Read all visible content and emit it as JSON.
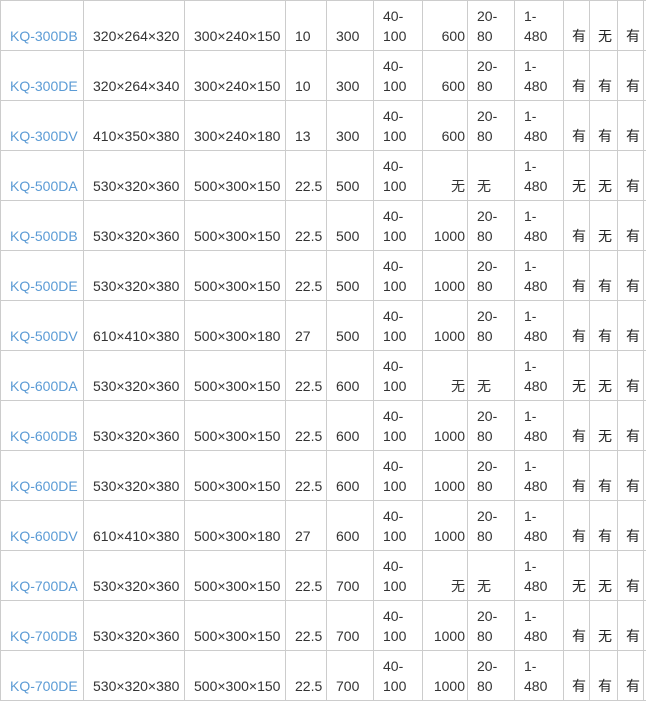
{
  "colors": {
    "model_link": "#5b9bd5",
    "grid": "#cccccc",
    "text": "#333333"
  },
  "rows": [
    {
      "model": "KQ-300DB",
      "outer": "320×264×320",
      "inner": "300×240×150",
      "c4": "10",
      "c5": "300",
      "c6": "40-\n100",
      "c7": "600",
      "c8": "20-\n80",
      "c9": "1-\n480",
      "f1": "有",
      "f2": "无",
      "f3": "有"
    },
    {
      "model": "KQ-300DE",
      "outer": "320×264×340",
      "inner": "300×240×150",
      "c4": "10",
      "c5": "300",
      "c6": "40-\n100",
      "c7": "600",
      "c8": "20-\n80",
      "c9": "1-\n480",
      "f1": "有",
      "f2": "有",
      "f3": "有"
    },
    {
      "model": "KQ-300DV",
      "outer": "410×350×380",
      "inner": "300×240×180",
      "c4": "13",
      "c5": "300",
      "c6": "40-\n100",
      "c7": "600",
      "c8": "20-\n80",
      "c9": "1-\n480",
      "f1": "有",
      "f2": "有",
      "f3": "有"
    },
    {
      "model": "KQ-500DA",
      "outer": "530×320×360",
      "inner": "500×300×150",
      "c4": "22.5",
      "c5": "500",
      "c6": "40-\n100",
      "c7": "无",
      "c8": "无",
      "c9": "1-\n480",
      "f1": "无",
      "f2": "无",
      "f3": "有"
    },
    {
      "model": "KQ-500DB",
      "outer": "530×320×360",
      "inner": "500×300×150",
      "c4": "22.5",
      "c5": "500",
      "c6": "40-\n100",
      "c7": "1000",
      "c8": "20-\n80",
      "c9": "1-\n480",
      "f1": "有",
      "f2": "无",
      "f3": "有"
    },
    {
      "model": "KQ-500DE",
      "outer": "530×320×380",
      "inner": "500×300×150",
      "c4": "22.5",
      "c5": "500",
      "c6": "40-\n100",
      "c7": "1000",
      "c8": "20-\n80",
      "c9": "1-\n480",
      "f1": "有",
      "f2": "有",
      "f3": "有"
    },
    {
      "model": "KQ-500DV",
      "outer": "610×410×380",
      "inner": "500×300×180",
      "c4": "27",
      "c5": "500",
      "c6": "40-\n100",
      "c7": "1000",
      "c8": "20-\n80",
      "c9": "1-\n480",
      "f1": "有",
      "f2": "有",
      "f3": "有"
    },
    {
      "model": "KQ-600DA",
      "outer": "530×320×360",
      "inner": "500×300×150",
      "c4": "22.5",
      "c5": "600",
      "c6": "40-\n100",
      "c7": "无",
      "c8": "无",
      "c9": "1-\n480",
      "f1": "无",
      "f2": "无",
      "f3": "有"
    },
    {
      "model": "KQ-600DB",
      "outer": "530×320×360",
      "inner": "500×300×150",
      "c4": "22.5",
      "c5": "600",
      "c6": "40-\n100",
      "c7": "1000",
      "c8": "20-\n80",
      "c9": "1-\n480",
      "f1": "有",
      "f2": "无",
      "f3": "有"
    },
    {
      "model": "KQ-600DE",
      "outer": "530×320×380",
      "inner": "500×300×150",
      "c4": "22.5",
      "c5": "600",
      "c6": "40-\n100",
      "c7": "1000",
      "c8": "20-\n80",
      "c9": "1-\n480",
      "f1": "有",
      "f2": "有",
      "f3": "有"
    },
    {
      "model": "KQ-600DV",
      "outer": "610×410×380",
      "inner": "500×300×180",
      "c4": "27",
      "c5": "600",
      "c6": "40-\n100",
      "c7": "1000",
      "c8": "20-\n80",
      "c9": "1-\n480",
      "f1": "有",
      "f2": "有",
      "f3": "有"
    },
    {
      "model": "KQ-700DA",
      "outer": "530×320×360",
      "inner": "500×300×150",
      "c4": "22.5",
      "c5": "700",
      "c6": "40-\n100",
      "c7": "无",
      "c8": "无",
      "c9": "1-\n480",
      "f1": "无",
      "f2": "无",
      "f3": "有"
    },
    {
      "model": "KQ-700DB",
      "outer": "530×320×360",
      "inner": "500×300×150",
      "c4": "22.5",
      "c5": "700",
      "c6": "40-\n100",
      "c7": "1000",
      "c8": "20-\n80",
      "c9": "1-\n480",
      "f1": "有",
      "f2": "无",
      "f3": "有"
    },
    {
      "model": "KQ-700DE",
      "outer": "530×320×380",
      "inner": "500×300×150",
      "c4": "22.5",
      "c5": "700",
      "c6": "40-\n100",
      "c7": "1000",
      "c8": "20-\n80",
      "c9": "1-\n480",
      "f1": "有",
      "f2": "有",
      "f3": "有"
    }
  ]
}
